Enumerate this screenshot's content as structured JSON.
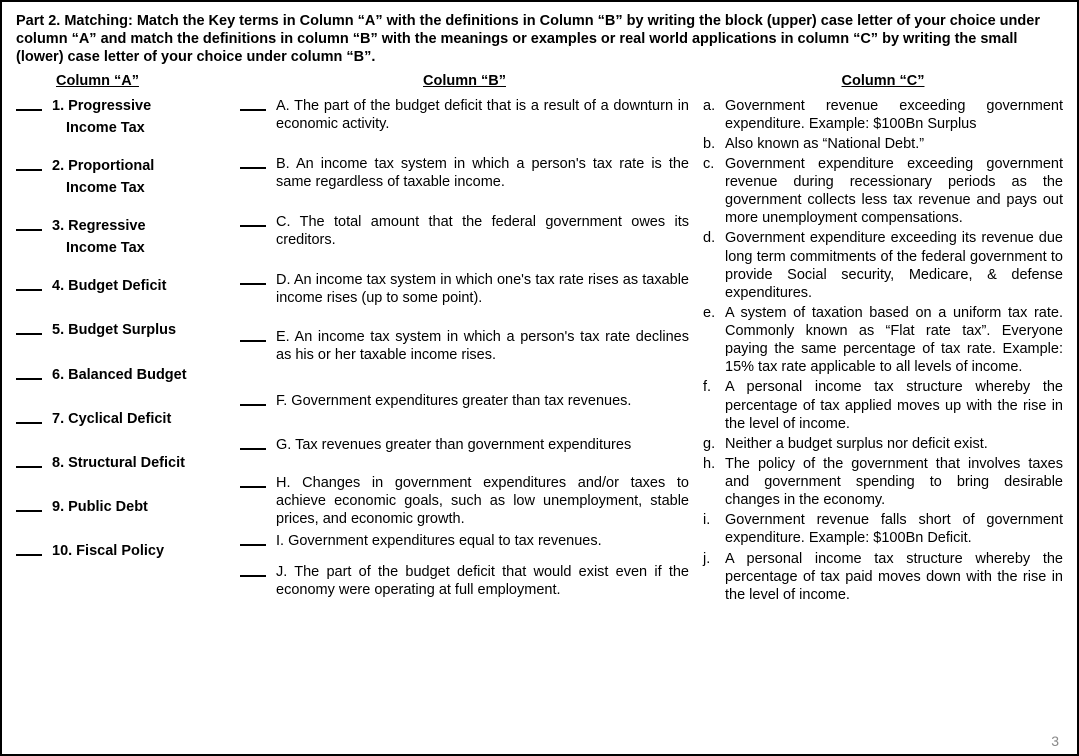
{
  "instructions": "Part 2. Matching: Match the Key terms  in Column “A” with the definitions in Column “B” by writing the  block (upper) case letter of your choice under column “A” and  match the definitions in column “B” with the meanings or examples or real world applications in column “C” by writing the small (lower) case letter of your choice under column “B”.",
  "headings": {
    "a": "Column  “A”",
    "b": "Column  “B”",
    "c": "Column  “C”"
  },
  "columnA": [
    {
      "num": "1.",
      "line1": "Progressive",
      "line2": "Income Tax"
    },
    {
      "num": "2.",
      "line1": "Proportional",
      "line2": "Income Tax"
    },
    {
      "num": "3.",
      "line1": "Regressive",
      "line2": "Income Tax"
    },
    {
      "num": "4.",
      "line1": "Budget Deficit",
      "line2": ""
    },
    {
      "num": "5.",
      "line1": "Budget Surplus",
      "line2": ""
    },
    {
      "num": "6.",
      "line1": "Balanced Budget",
      "line2": ""
    },
    {
      "num": "7.",
      "line1": "Cyclical Deficit",
      "line2": ""
    },
    {
      "num": "8.",
      "line1": "Structural Deficit",
      "line2": ""
    },
    {
      "num": "9.",
      "line1": "Public Debt",
      "line2": ""
    },
    {
      "num": "10.",
      "line1": "Fiscal Policy",
      "line2": ""
    }
  ],
  "columnB": [
    "A. The part of the budget deficit that is a result of a downturn in economic activity.",
    "B. An income tax system in which a person's tax rate is the same regardless of taxable income.",
    "C. The total amount that the federal government owes its creditors.",
    "D. An income tax system in which one's tax rate rises as taxable income rises (up to some point).",
    "E. An income tax system in which a person's tax rate declines as his or her taxable income rises.",
    "F. Government expenditures greater than tax revenues.",
    "G. Tax revenues greater than government expenditures",
    "H. Changes in government expenditures and/or taxes to achieve economic goals, such as low unemployment, stable prices, and economic growth.",
    "I. Government expenditures equal to tax revenues.",
    "J. The part of the budget deficit that would exist even if the economy were operating at full employment."
  ],
  "columnC": [
    {
      "l": "a.",
      "t": "Government revenue exceeding government expenditure. Example: $100Bn Surplus"
    },
    {
      "l": "b.",
      "t": "Also known as “National Debt.”"
    },
    {
      "l": "c.",
      "t": "Government expenditure exceeding government revenue during recessionary periods as the government collects less tax revenue and pays out more unemployment compensations."
    },
    {
      "l": "d.",
      "t": "Government expenditure exceeding its revenue due long term  commitments of the federal government to provide  Social security, Medicare, & defense expenditures."
    },
    {
      "l": "e.",
      "t": "A system of taxation based on a  uniform tax rate. Commonly known as “Flat rate tax”. Everyone paying the same percentage of  tax rate. Example: 15% tax rate applicable to all levels of income."
    },
    {
      "l": "f.",
      "t": "A personal  income tax structure whereby the percentage of tax applied  moves up with the rise in the  level of income."
    },
    {
      "l": "g.",
      "t": "Neither a  budget surplus nor deficit exist."
    },
    {
      "l": "h.",
      "t": "The policy of the government that involves taxes and government spending to bring desirable changes in the economy."
    },
    {
      "l": "i.",
      "t": "Government revenue falls short of government expenditure. Example:  $100Bn Deficit."
    },
    {
      "l": "j.",
      "t": "A personal income tax structure whereby the percentage of tax paid moves down with the rise in the level of income."
    }
  ],
  "pageNumber": "3"
}
